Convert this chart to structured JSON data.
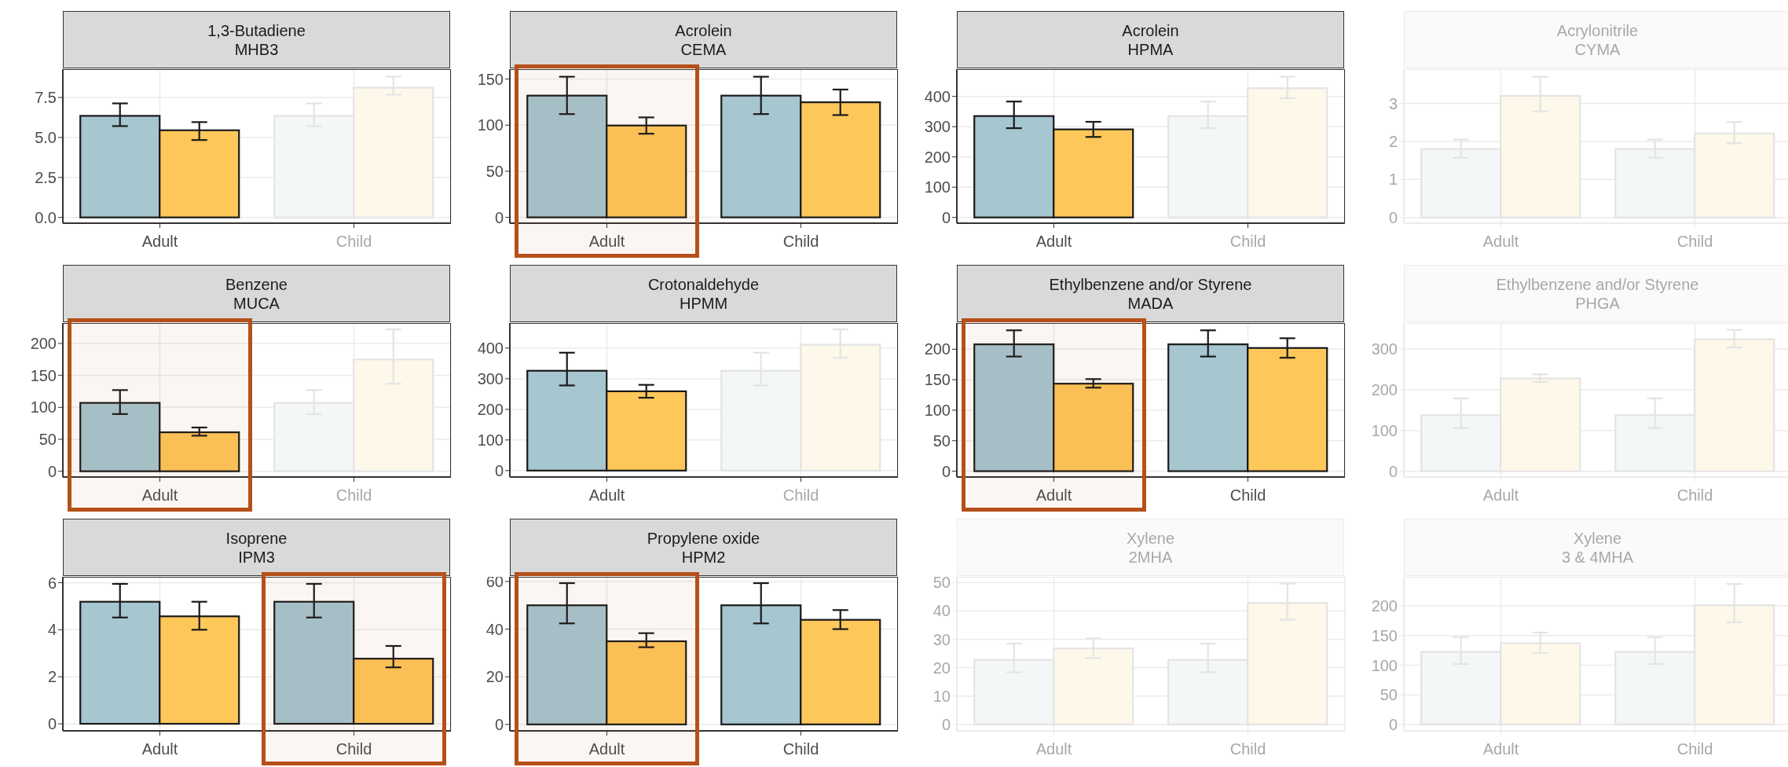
{
  "chart_data": [
    {
      "type": "bar",
      "title": "1,3-Butadiene\nMHB3",
      "categories": [
        "Adult",
        "Child"
      ],
      "ylim": [
        -0.36,
        9.27
      ],
      "yticks": [
        {
          "value": 0,
          "label": "0.0"
        },
        2.5,
        {
          "value": 5,
          "label": "5.0"
        },
        7.5
      ],
      "grid": true,
      "series": [
        {
          "colors": [
            "#a6c6d0",
            "#f4f7f8"
          ],
          "values": [
            6.35,
            6.35
          ],
          "errors": [
            [
              5.71,
              7.13
            ],
            [
              5.71,
              7.13
            ]
          ]
        },
        {
          "colors": [
            "#fec75a",
            "#fdf8ea"
          ],
          "values": [
            5.45,
            8.11
          ],
          "errors": [
            [
              4.84,
              5.96
            ],
            [
              7.67,
              8.8
            ]
          ]
        }
      ]
    },
    {
      "type": "bar",
      "title": "Acrolein\nCEMA",
      "categories": [
        "Adult",
        "Child"
      ],
      "ylim": [
        -6.3,
        160.7
      ],
      "yticks": [
        0,
        50,
        100,
        150
      ],
      "grid": true,
      "bands": [
        {
          "axis": "x",
          "from": "Adult",
          "to": "Adult",
          "color": "#b5501a"
        }
      ],
      "series": [
        {
          "colors": [
            "#a6c6d0",
            "#a6c6d0"
          ],
          "values": [
            132,
            132
          ],
          "errors": [
            [
              112,
              152.5
            ],
            [
              112,
              152.5
            ]
          ]
        },
        {
          "colors": [
            "#fec75a",
            "#fec75a"
          ],
          "values": [
            99.6,
            124.8
          ],
          "errors": [
            [
              90.7,
              108.4
            ],
            [
              110.9,
              138.6
            ]
          ]
        }
      ]
    },
    {
      "type": "bar",
      "title": "Acrolein\nHPMA",
      "categories": [
        "Adult",
        "Child"
      ],
      "ylim": [
        -19,
        490
      ],
      "yticks": [
        0,
        100,
        200,
        300,
        400
      ],
      "grid": true,
      "series": [
        {
          "colors": [
            "#a6c6d0",
            "#f4f7f8"
          ],
          "values": [
            335,
            335
          ],
          "errors": [
            [
              295,
              383
            ],
            [
              295,
              383
            ]
          ]
        },
        {
          "colors": [
            "#fec75a",
            "#fdf8ea"
          ],
          "values": [
            291,
            427
          ],
          "errors": [
            [
              266,
              316
            ],
            [
              394,
              465
            ]
          ]
        }
      ]
    },
    {
      "type": "bar",
      "title": "Acrylonitrile\nCYMA",
      "categories": [
        "Adult",
        "Child"
      ],
      "ylim": [
        -0.15,
        3.9
      ],
      "yticks": [
        0,
        1,
        2,
        3
      ],
      "grid": true,
      "series": [
        {
          "colors": [
            "#f4f7f8",
            "#f4f7f8"
          ],
          "values": [
            1.8,
            1.8
          ],
          "errors": [
            [
              1.57,
              2.05
            ],
            [
              1.57,
              2.05
            ]
          ]
        },
        {
          "colors": [
            "#fdf8ea",
            "#fdf8ea"
          ],
          "values": [
            3.2,
            2.21
          ],
          "errors": [
            [
              2.79,
              3.7
            ],
            [
              1.95,
              2.51
            ]
          ]
        }
      ]
    },
    {
      "type": "bar",
      "title": "Benzene\nMUCA",
      "categories": [
        "Adult",
        "Child"
      ],
      "ylim": [
        -9,
        232
      ],
      "yticks": [
        0,
        50,
        100,
        150,
        200
      ],
      "grid": true,
      "bands": [
        {
          "axis": "x",
          "from": "Adult",
          "to": "Adult",
          "color": "#b5501a"
        }
      ],
      "series": [
        {
          "colors": [
            "#a6c6d0",
            "#f4f7f8"
          ],
          "values": [
            107,
            107
          ],
          "errors": [
            [
              89.5,
              127
            ],
            [
              89.5,
              127
            ]
          ]
        },
        {
          "colors": [
            "#fec75a",
            "#fdf8ea"
          ],
          "values": [
            61,
            175
          ],
          "errors": [
            [
              55.7,
              68.5
            ],
            [
              137,
              222
            ]
          ]
        }
      ]
    },
    {
      "type": "bar",
      "title": "Crotonaldehyde\nHPMM",
      "categories": [
        "Adult",
        "Child"
      ],
      "ylim": [
        -21,
        482
      ],
      "yticks": [
        0,
        100,
        200,
        300,
        400
      ],
      "grid": true,
      "series": [
        {
          "colors": [
            "#a6c6d0",
            "#f4f7f8"
          ],
          "values": [
            326,
            326
          ],
          "errors": [
            [
              278,
              385
            ],
            [
              278,
              385
            ]
          ]
        },
        {
          "colors": [
            "#fec75a",
            "#fdf8ea"
          ],
          "values": [
            259,
            411
          ],
          "errors": [
            [
              238,
              280
            ],
            [
              368,
              461
            ]
          ]
        }
      ]
    },
    {
      "type": "bar",
      "title": "Ethylbenzene and/or Styrene\nMADA",
      "categories": [
        "Adult",
        "Child"
      ],
      "ylim": [
        -9.6,
        243
      ],
      "yticks": [
        0,
        50,
        100,
        150,
        200
      ],
      "grid": true,
      "bands": [
        {
          "axis": "x",
          "from": "Adult",
          "to": "Adult",
          "color": "#b5501a"
        }
      ],
      "series": [
        {
          "colors": [
            "#a6c6d0",
            "#a6c6d0"
          ],
          "values": [
            208,
            208
          ],
          "errors": [
            [
              188,
              231
            ],
            [
              188,
              231
            ]
          ]
        },
        {
          "colors": [
            "#fec75a",
            "#fec75a"
          ],
          "values": [
            143.5,
            202
          ],
          "errors": [
            [
              137,
              151
            ],
            [
              186,
              218
            ]
          ]
        }
      ]
    },
    {
      "type": "bar",
      "title": "Ethylbenzene and/or Styrene\nPHGA",
      "categories": [
        "Adult",
        "Child"
      ],
      "ylim": [
        -14,
        364
      ],
      "yticks": [
        0,
        100,
        200,
        300
      ],
      "grid": true,
      "series": [
        {
          "colors": [
            "#f4f7f8",
            "#f4f7f8"
          ],
          "values": [
            138,
            138
          ],
          "errors": [
            [
              106,
              179
            ],
            [
              106,
              179
            ]
          ]
        },
        {
          "colors": [
            "#fdf8ea",
            "#fdf8ea"
          ],
          "values": [
            228,
            324
          ],
          "errors": [
            [
              219,
              238
            ],
            [
              304,
              347
            ]
          ]
        }
      ]
    },
    {
      "type": "bar",
      "title": "Isoprene\nIPM3",
      "categories": [
        "Adult",
        "Child"
      ],
      "ylim": [
        -0.3,
        6.25
      ],
      "yticks": [
        0,
        2,
        4,
        6
      ],
      "grid": true,
      "bands": [
        {
          "axis": "x",
          "from": "Child",
          "to": "Child",
          "color": "#b5501a"
        }
      ],
      "series": [
        {
          "colors": [
            "#a6c6d0",
            "#a6c6d0"
          ],
          "values": [
            5.19,
            5.19
          ],
          "errors": [
            [
              4.52,
              5.95
            ],
            [
              4.52,
              5.95
            ]
          ]
        },
        {
          "colors": [
            "#fec75a",
            "#fec75a"
          ],
          "values": [
            4.57,
            2.77
          ],
          "errors": [
            [
              4.0,
              5.19
            ],
            [
              2.4,
              3.31
            ]
          ]
        }
      ]
    },
    {
      "type": "bar",
      "title": "Propylene oxide\nHPM2",
      "categories": [
        "Adult",
        "Child"
      ],
      "ylim": [
        -2.7,
        61.95
      ],
      "yticks": [
        0,
        20,
        40,
        60
      ],
      "grid": true,
      "bands": [
        {
          "axis": "x",
          "from": "Adult",
          "to": "Adult",
          "color": "#b5501a"
        }
      ],
      "series": [
        {
          "colors": [
            "#a6c6d0",
            "#a6c6d0"
          ],
          "values": [
            50,
            50
          ],
          "errors": [
            [
              42.4,
              59.3
            ],
            [
              42.4,
              59.3
            ]
          ]
        },
        {
          "colors": [
            "#fec75a",
            "#fec75a"
          ],
          "values": [
            34.9,
            43.9
          ],
          "errors": [
            [
              32.4,
              38.3
            ],
            [
              40,
              48
            ]
          ]
        }
      ]
    },
    {
      "type": "bar",
      "title": "Xylene\n2MHA",
      "categories": [
        "Adult",
        "Child"
      ],
      "ylim": [
        -2.25,
        52
      ],
      "yticks": [
        0,
        10,
        20,
        30,
        40,
        50
      ],
      "grid": true,
      "series": [
        {
          "colors": [
            "#f4f7f8",
            "#f4f7f8"
          ],
          "values": [
            22.7,
            22.7
          ],
          "errors": [
            [
              18.4,
              28.5
            ],
            [
              18.4,
              28.5
            ]
          ]
        },
        {
          "colors": [
            "#fdf8ea",
            "#fdf8ea"
          ],
          "values": [
            26.8,
            42.8
          ],
          "errors": [
            [
              23.4,
              30.3
            ],
            [
              36.9,
              49.6
            ]
          ]
        }
      ]
    },
    {
      "type": "bar",
      "title": "Xylene\n3 & 4MHA",
      "categories": [
        "Adult",
        "Child"
      ],
      "ylim": [
        -10.8,
        249
      ],
      "yticks": [
        0,
        50,
        100,
        150,
        200
      ],
      "grid": true,
      "series": [
        {
          "colors": [
            "#f4f7f8",
            "#f4f7f8"
          ],
          "values": [
            122.5,
            122.5
          ],
          "errors": [
            [
              102,
              147
            ],
            [
              102,
              147
            ]
          ]
        },
        {
          "colors": [
            "#fdf8ea",
            "#fdf8ea"
          ],
          "values": [
            137,
            201
          ],
          "errors": [
            [
              120.6,
              155
            ],
            [
              172.5,
              237
            ]
          ]
        }
      ]
    }
  ]
}
